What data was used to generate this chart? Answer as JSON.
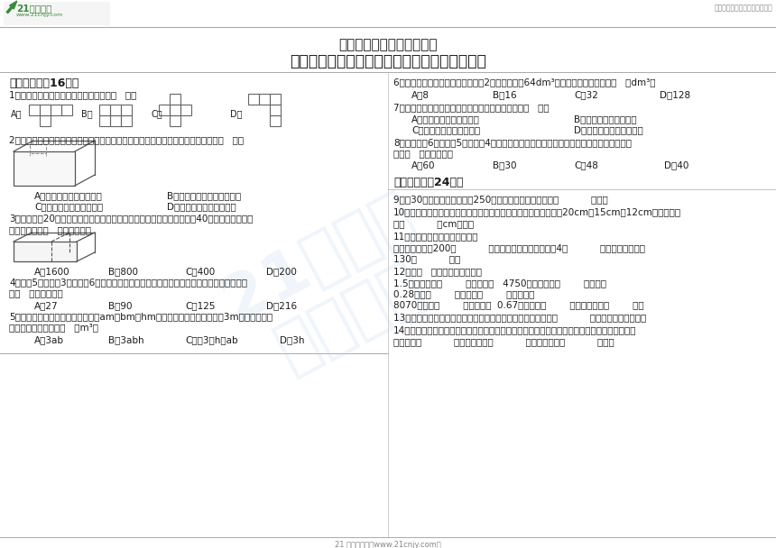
{
  "bg_color": "#ffffff",
  "green_color": "#3a8a3a",
  "black": "#1a1a1a",
  "gray": "#888888",
  "light_gray": "#cccccc",
  "title1": "人教版小学数学五年级下册",
  "title2": "第三单元《长方体和正方体》质量调研卷（一）",
  "logo_line1": "21世纪教育",
  "logo_line2": "www.21cnjy.com",
  "top_right": "中小学教育资源及组卷应用平台",
  "sec1": "一、选择题（16分）",
  "sec2": "二、填空题（24分）",
  "q1": "1．如图，图形折叠后能围成正方体的是（   ）。",
  "q2": "2．如图，将一个长方体木块的中间挖掉一小个小长方体木块，下面的说法正确的是（   ）。",
  "q2A": "A．体积减少，表面积不变",
  "q2B": "B．体积减少，表面积也减少",
  "q2C": "C．体积减少，表面积增加",
  "q2D": "D．体积和表面积都不是变",
  "q3a": "3．一个长为20厘米的长方体，按图中的横截面切成两段，表面积增加了40平方厘米，原来长",
  "q3b": "方体的体积是（   ）立方厘米。",
  "q3A": "A．1600",
  "q3B": "B．800",
  "q3C": "C．400",
  "q3D": "D．200",
  "q4a": "4．将长5分米、宽3分米、高6分米的一块长方体木料锯成最大的正方体，这个正方体的体积",
  "q4b": "是（   ）立方分米。",
  "q4A": "A．27",
  "q4B": "B．90",
  "q4C": "C．125",
  "q4D": "D．216",
  "q5a": "5．一个长方体的长、宽、高分别为am、bm、hm，如果长、宽不变，高增加3m，那么新长方",
  "q5b": "体的体积比原来增加（   ）m³。",
  "q5A": "A．3ab",
  "q5B": "B．3abh",
  "q5C": "C．（3＋h）ab",
  "q5D": "D．3h",
  "q6": "6．一个正方体的棱长扩大到原来的2倍后，体积是64dm³，正方体原来的体积是（   ）dm³。",
  "q6A": "A．8",
  "q6B": "B．16",
  "q6C": "C．32",
  "q6D": "D．128",
  "q7": "7．用两个完全相同的小正方体拼成一个长方体，则（   ）。",
  "q7A": "A．体积不变，表面积变小",
  "q7B": "B．体积和表面积都不变",
  "q7C": "C．体积不变，表面积变大",
  "q7D": "D．体积变小，表面积变大",
  "q8a": "8．把一个长6厘米、宽5厘米、高4厘米的长方体切成两个完全相同的小长方体，表面积最多",
  "q8b": "增加（   ）平方厘米。",
  "q8A": "A．60",
  "q8B": "B．30",
  "q8C": "C．48",
  "q8D": "D．40",
  "q9": "9．把30升的酒精装入容积是250毫升的酒精瓶里，能装满（           ）瓶。",
  "q10a": "10．用铁丝焊接一个长方体框架，同一顶点上的三根铁丝长分别为20cm、15cm和12cm，则一共用",
  "q10b": "了（           ）cm铁丝。",
  "q11": "11．在括号里填上合适的单位。",
  "q11a": "电冰箱的容积是200（           ）。教室黑板的面积大约是4（           ）。小明的身高是",
  "q11b": "130（           ）。",
  "q12": "12．在（   ）里填上合适的数。",
  "q12a": "1.5立方分米＝（        ）立方厘米   4750立方分米＝（        ）立方米",
  "q12b": "0.28升＝（        ）毫升＝（        ）立方厘米",
  "q12c": "8070毫升＝（        ）立方分米  0.67立方米＝（        ）立方分米＝（        ）升",
  "q13": "13．用相同大小的小正方体拼成一个较大的正方体，至少需要（           ）个这样的小正方体。",
  "q14a": "14．一个正方体的六个面分别涂上红、黄、蓝、绿、白、黑六种颜色，根据下图看到的颜色推断",
  "q14b": "出红面对（           ）面，绿面对（           ）面，蓝面对（           ）面。",
  "bottom": "21 世纪教育网（www.21cnjy.com）",
  "wm1": "21世纪教",
  "wm2": "育研究院"
}
